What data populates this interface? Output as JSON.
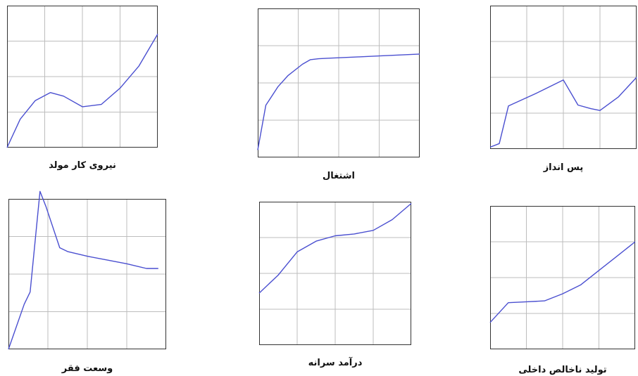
{
  "colors": {
    "line": "#4a4fd0",
    "grid": "#bdbdbd",
    "frame": "#333333"
  },
  "chart_data": [
    {
      "type": "line",
      "title": "نیروی کار مولد",
      "x": [
        0,
        0.7,
        1.5,
        2.3,
        3.0,
        4.0,
        5.0,
        6.0,
        7.0,
        8.0
      ],
      "values": [
        0.0,
        1.6,
        2.65,
        3.1,
        2.9,
        2.3,
        2.43,
        3.35,
        4.6,
        6.4
      ],
      "xlim": [
        0,
        8
      ],
      "ylim": [
        0,
        8
      ],
      "grid": true
    },
    {
      "type": "line",
      "title": "اشتغال",
      "x": [
        0,
        0.4,
        1.0,
        1.5,
        2.2,
        2.6,
        3.0,
        3.5,
        4.0,
        5.0,
        6.0,
        8.0
      ],
      "values": [
        0.4,
        2.8,
        3.8,
        4.4,
        5.0,
        5.25,
        5.3,
        5.33,
        5.35,
        5.4,
        5.45,
        5.55
      ],
      "xlim": [
        0,
        8
      ],
      "ylim": [
        0,
        8
      ],
      "grid": true
    },
    {
      "type": "line",
      "title": "پس انداز",
      "x": [
        0,
        0.5,
        1.0,
        2.5,
        4.0,
        4.8,
        5.5,
        6.0,
        7.0,
        8.0
      ],
      "values": [
        0.1,
        0.3,
        2.4,
        3.1,
        3.85,
        2.45,
        2.25,
        2.15,
        2.9,
        4.0
      ],
      "xlim": [
        0,
        8
      ],
      "ylim": [
        0,
        8
      ],
      "grid": true
    },
    {
      "type": "line",
      "title": "وسعت فقر",
      "x": [
        0,
        0.8,
        1.1,
        1.6,
        1.9,
        2.6,
        3.0,
        4.0,
        5.0,
        6.0,
        7.0,
        7.6
      ],
      "values": [
        0.0,
        2.4,
        3.05,
        8.4,
        7.6,
        5.4,
        5.2,
        4.95,
        4.75,
        4.55,
        4.3,
        4.3
      ],
      "xlim": [
        0,
        8
      ],
      "ylim": [
        0,
        8
      ],
      "grid": true
    },
    {
      "type": "line",
      "title": "درآمد سرانه",
      "x": [
        0,
        1.0,
        2.0,
        3.0,
        4.0,
        5.0,
        6.0,
        7.0,
        8.0
      ],
      "values": [
        2.9,
        3.9,
        5.2,
        5.8,
        6.1,
        6.2,
        6.4,
        7.0,
        7.9
      ],
      "xlim": [
        0,
        8
      ],
      "ylim": [
        0,
        8
      ],
      "grid": true
    },
    {
      "type": "line",
      "title": "تولید ناخالص داخلی",
      "x": [
        0,
        1.0,
        2.0,
        3.0,
        4.0,
        5.0,
        6.0,
        7.0,
        8.0
      ],
      "values": [
        1.5,
        2.6,
        2.65,
        2.7,
        3.1,
        3.6,
        4.4,
        5.2,
        6.0
      ],
      "xlim": [
        0,
        8
      ],
      "ylim": [
        0,
        8
      ],
      "grid": true
    }
  ]
}
